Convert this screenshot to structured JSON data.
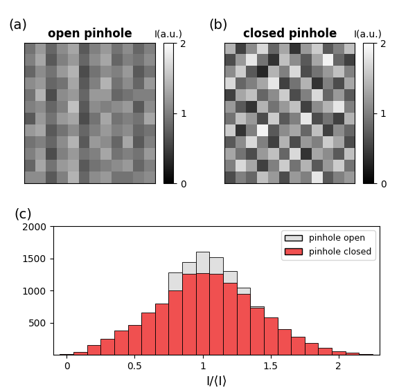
{
  "chart_data": [
    {
      "type": "heatmap",
      "annotation": "(a)",
      "title": "open pinhole",
      "colorbar_label": "I(a.u.)",
      "color_range": [
        0,
        2
      ],
      "color_ticks": [
        0,
        1,
        2
      ],
      "tick_labels": false,
      "cells": [
        [
          0.9,
          1.2,
          0.8,
          1.1,
          1.3,
          0.7,
          1.0,
          1.2,
          0.9,
          1.1,
          0.8,
          1.0
        ],
        [
          1.0,
          1.3,
          0.7,
          1.0,
          1.2,
          0.8,
          1.1,
          1.3,
          0.8,
          1.0,
          0.9,
          1.1
        ],
        [
          0.8,
          1.1,
          0.9,
          1.2,
          1.4,
          0.6,
          0.9,
          1.1,
          1.0,
          1.2,
          0.7,
          0.9
        ],
        [
          1.1,
          1.2,
          0.8,
          0.9,
          1.3,
          0.7,
          1.0,
          1.4,
          0.9,
          1.1,
          0.8,
          1.2
        ],
        [
          0.9,
          1.4,
          0.6,
          1.1,
          1.2,
          0.8,
          1.2,
          1.2,
          0.8,
          0.9,
          1.0,
          1.0
        ],
        [
          1.0,
          1.1,
          0.8,
          1.0,
          1.5,
          0.7,
          1.1,
          1.0,
          1.1,
          1.2,
          0.7,
          1.1
        ],
        [
          0.7,
          1.2,
          0.9,
          1.2,
          1.3,
          0.6,
          0.9,
          1.3,
          0.9,
          1.0,
          0.9,
          1.3
        ],
        [
          1.2,
          1.3,
          0.7,
          0.9,
          1.1,
          0.8,
          1.0,
          1.2,
          1.0,
          1.1,
          0.8,
          0.9
        ],
        [
          0.9,
          1.0,
          0.8,
          1.1,
          1.4,
          0.7,
          1.2,
          1.1,
          0.8,
          1.3,
          0.7,
          1.0
        ],
        [
          1.0,
          1.2,
          0.6,
          1.0,
          1.2,
          0.9,
          1.0,
          1.3,
          0.9,
          1.0,
          0.9,
          1.2
        ],
        [
          0.8,
          1.3,
          0.9,
          1.2,
          1.3,
          0.7,
          0.9,
          1.0,
          1.1,
          1.2,
          0.8,
          1.0
        ],
        [
          1.1,
          1.1,
          0.7,
          1.0,
          1.4,
          0.8,
          1.1,
          1.2,
          0.9,
          0.9,
          1.0,
          1.1
        ]
      ]
    },
    {
      "type": "heatmap",
      "annotation": "(b)",
      "title": "closed pinhole",
      "colorbar_label": "I(a.u.)",
      "color_range": [
        0,
        2
      ],
      "color_ticks": [
        0,
        1,
        2
      ],
      "tick_labels": false,
      "cells": [
        [
          1.4,
          0.5,
          1.1,
          1.7,
          0.8,
          1.3,
          0.4,
          1.2,
          1.6,
          0.7,
          1.0,
          1.5
        ],
        [
          0.6,
          1.2,
          1.8,
          0.9,
          0.4,
          1.5,
          1.1,
          0.7,
          1.3,
          1.9,
          0.8,
          0.5
        ],
        [
          1.1,
          1.6,
          0.7,
          0.3,
          1.4,
          1.0,
          1.7,
          0.6,
          0.9,
          1.2,
          1.5,
          1.0
        ],
        [
          1.7,
          0.8,
          1.0,
          1.3,
          1.8,
          0.5,
          0.9,
          1.4,
          0.4,
          1.0,
          0.6,
          1.3
        ],
        [
          0.5,
          1.3,
          1.5,
          0.8,
          1.1,
          1.6,
          0.6,
          1.0,
          1.7,
          0.8,
          1.2,
          0.7
        ],
        [
          1.2,
          0.7,
          0.4,
          1.4,
          0.9,
          1.2,
          1.5,
          0.5,
          1.1,
          1.4,
          1.8,
          1.0
        ],
        [
          0.9,
          1.5,
          1.2,
          0.6,
          1.6,
          0.7,
          1.0,
          1.8,
          0.6,
          0.9,
          0.5,
          1.4
        ],
        [
          1.6,
          0.4,
          1.0,
          1.9,
          0.7,
          1.1,
          1.3,
          0.8,
          1.5,
          0.5,
          1.1,
          0.8
        ],
        [
          0.7,
          1.1,
          1.7,
          1.0,
          0.5,
          1.4,
          0.6,
          1.2,
          1.0,
          1.6,
          1.3,
          0.6
        ],
        [
          1.3,
          0.9,
          0.6,
          1.2,
          1.5,
          0.8,
          1.7,
          0.4,
          1.3,
          1.1,
          0.7,
          1.5
        ],
        [
          1.0,
          1.7,
          1.3,
          0.5,
          1.0,
          1.6,
          0.9,
          1.4,
          0.7,
          1.2,
          1.6,
          0.9
        ],
        [
          0.6,
          1.0,
          0.8,
          1.5,
          1.2,
          0.6,
          1.2,
          1.0,
          1.8,
          0.7,
          1.0,
          1.2
        ]
      ]
    },
    {
      "type": "histogram",
      "annotation": "(c)",
      "xlabel": "I/⟨I⟩",
      "bins": [
        -0.05,
        0.05,
        0.15,
        0.25,
        0.35,
        0.45,
        0.55,
        0.65,
        0.75,
        0.85,
        0.95,
        1.05,
        1.15,
        1.25,
        1.35,
        1.45,
        1.55,
        1.65,
        1.75,
        1.85,
        1.95,
        2.05,
        2.15,
        2.25
      ],
      "series": [
        {
          "name": "pinhole open",
          "color": "#e0e0e0",
          "values": [
            0,
            10,
            40,
            110,
            230,
            400,
            620,
            790,
            1280,
            1440,
            1600,
            1520,
            1300,
            1050,
            760,
            550,
            330,
            200,
            100,
            50,
            20,
            10,
            0
          ]
        },
        {
          "name": "pinhole closed",
          "color": "#f05050",
          "values": [
            10,
            50,
            150,
            250,
            380,
            470,
            660,
            800,
            1000,
            1260,
            1270,
            1260,
            1120,
            950,
            730,
            580,
            400,
            280,
            180,
            110,
            60,
            30,
            10
          ]
        }
      ],
      "xlim": [
        -0.1,
        2.3
      ],
      "xticks": [
        0,
        0.5,
        1,
        1.5,
        2
      ],
      "ylim": [
        0,
        2000
      ],
      "yticks": [
        500,
        1000,
        1500,
        2000
      ],
      "legend": "upper right"
    }
  ]
}
